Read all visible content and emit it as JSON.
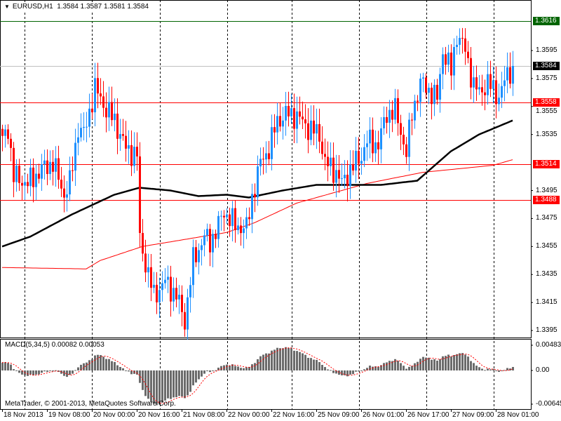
{
  "header": {
    "symbol_timeframe": "EURUSD,H1",
    "ohlc": "1.3584 1.3587 1.3581 1.3584"
  },
  "indicator": {
    "title": "MACD(5,34,5) 0.00082 0.00053",
    "axis_labels": [
      "0.00483",
      "0.00",
      "-0.00645"
    ],
    "axis_values": [
      0.00483,
      0,
      -0.00645
    ]
  },
  "copyright": "MetaTrader, © 2001-2013, MetaQuotes Software Corp.",
  "colors": {
    "bull": "#1e90ff",
    "bear": "#ff0000",
    "ma_slow": "#ff0000",
    "ma_fast": "#000000",
    "level_green": "#006400",
    "level_red": "#ff0000",
    "current": "#000000"
  },
  "chart_data": {
    "type": "candlestick",
    "symbol": "EURUSD",
    "timeframe": "H1",
    "ylim": [
      1.3385,
      1.3635
    ],
    "y_ticks": [
      "1.3595",
      "1.3575",
      "1.3555",
      "1.3535",
      "1.3495",
      "1.3475",
      "1.3455",
      "1.3435",
      "1.3415",
      "1.3395"
    ],
    "x_ticks": [
      "18 Nov 2013",
      "19 Nov 08:00",
      "20 Nov 00:00",
      "20 Nov 16:00",
      "21 Nov 08:00",
      "22 Nov 00:00",
      "22 Nov 16:00",
      "25 Nov 09:00",
      "26 Nov 01:00",
      "26 Nov 17:00",
      "27 Nov 09:00",
      "28 Nov 01:00"
    ],
    "bar_count": 183,
    "close_path": [
      [
        0,
        1.353
      ],
      [
        2,
        1.354
      ],
      [
        4,
        1.3505
      ],
      [
        9,
        1.35
      ],
      [
        14,
        1.351
      ],
      [
        18,
        1.3515
      ],
      [
        22,
        1.3492
      ],
      [
        24,
        1.35
      ],
      [
        27,
        1.354
      ],
      [
        29,
        1.3535
      ],
      [
        33,
        1.3568
      ],
      [
        37,
        1.3553
      ],
      [
        40,
        1.3545
      ],
      [
        44,
        1.3525
      ],
      [
        48,
        1.352
      ],
      [
        49,
        1.346
      ],
      [
        52,
        1.3435
      ],
      [
        54,
        1.342
      ],
      [
        58,
        1.343
      ],
      [
        62,
        1.342
      ],
      [
        65,
        1.3402
      ],
      [
        68,
        1.3445
      ],
      [
        72,
        1.3462
      ],
      [
        74,
        1.3458
      ],
      [
        77,
        1.347
      ],
      [
        79,
        1.348
      ],
      [
        83,
        1.347
      ],
      [
        87,
        1.3468
      ],
      [
        89,
        1.349
      ],
      [
        92,
        1.3515
      ],
      [
        95,
        1.3525
      ],
      [
        98,
        1.3545
      ],
      [
        102,
        1.355
      ],
      [
        105,
        1.3548
      ],
      [
        109,
        1.354
      ],
      [
        113,
        1.3535
      ],
      [
        115,
        1.3515
      ],
      [
        119,
        1.3508
      ],
      [
        121,
        1.35
      ],
      [
        124,
        1.351
      ],
      [
        128,
        1.352
      ],
      [
        130,
        1.353
      ],
      [
        134,
        1.3528
      ],
      [
        137,
        1.355
      ],
      [
        140,
        1.3552
      ],
      [
        144,
        1.3522
      ],
      [
        146,
        1.355
      ],
      [
        149,
        1.3572
      ],
      [
        153,
        1.3565
      ],
      [
        155,
        1.356
      ],
      [
        157,
        1.3595
      ],
      [
        160,
        1.358
      ],
      [
        162,
        1.3607
      ],
      [
        165,
        1.3595
      ],
      [
        168,
        1.357
      ],
      [
        170,
        1.3565
      ],
      [
        173,
        1.3572
      ],
      [
        177,
        1.3562
      ],
      [
        180,
        1.3578
      ],
      [
        182,
        1.3584
      ]
    ],
    "ma_black": [
      [
        0,
        1.3455
      ],
      [
        10,
        1.3462
      ],
      [
        25,
        1.3478
      ],
      [
        40,
        1.3492
      ],
      [
        49,
        1.3497
      ],
      [
        60,
        1.3495
      ],
      [
        70,
        1.3491
      ],
      [
        80,
        1.3492
      ],
      [
        88,
        1.349
      ],
      [
        100,
        1.3495
      ],
      [
        112,
        1.3499
      ],
      [
        135,
        1.3499
      ],
      [
        148,
        1.3502
      ],
      [
        160,
        1.3523
      ],
      [
        170,
        1.3535
      ],
      [
        182,
        1.3545
      ]
    ],
    "ma_red": [
      [
        0,
        1.344
      ],
      [
        30,
        1.3439
      ],
      [
        35,
        1.3445
      ],
      [
        50,
        1.3455
      ],
      [
        80,
        1.3465
      ],
      [
        90,
        1.3472
      ],
      [
        105,
        1.3486
      ],
      [
        130,
        1.35
      ],
      [
        150,
        1.3508
      ],
      [
        175,
        1.3513
      ],
      [
        182,
        1.3517
      ]
    ],
    "levels": [
      {
        "label": "1.3616",
        "value": 1.3616,
        "color": "#006400"
      },
      {
        "label": "1.3584",
        "value": 1.3584,
        "color": "#000000",
        "line": "#c0c0c0"
      },
      {
        "label": "1.3558",
        "value": 1.3558,
        "color": "#ff0000"
      },
      {
        "label": "1.3514",
        "value": 1.3514,
        "color": "#ff0000"
      },
      {
        "label": "1.3488",
        "value": 1.3488,
        "color": "#ff0000"
      }
    ]
  }
}
